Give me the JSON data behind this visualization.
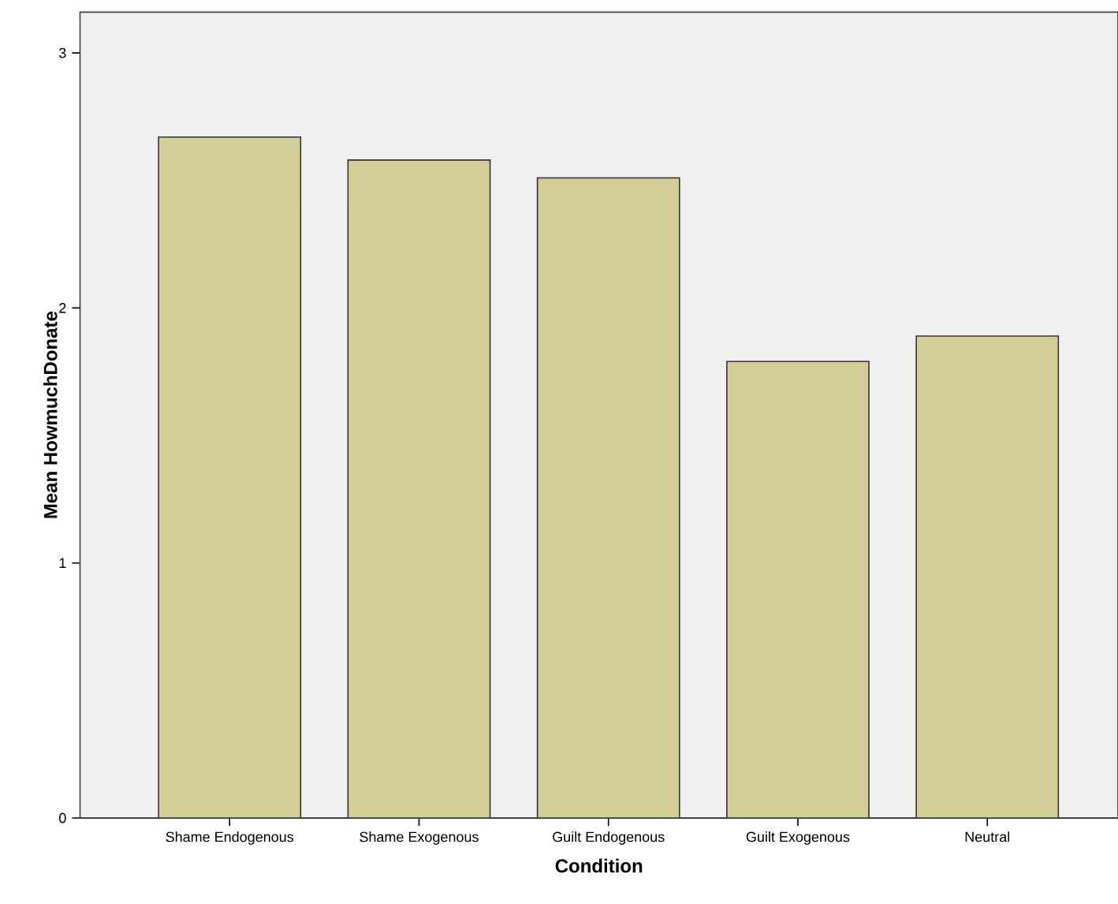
{
  "chart_data": {
    "type": "bar",
    "xlabel": "Condition",
    "ylabel": "Mean HowmuchDonate",
    "categories": [
      "Shame Endogenous",
      "Shame Exogenous",
      "Guilt Endogenous",
      "Guilt Exogenous",
      "Neutral"
    ],
    "values": [
      2.67,
      2.58,
      2.51,
      1.79,
      1.89
    ],
    "color": "#d3cd97",
    "ylim": [
      0,
      3.16
    ],
    "yticks": [
      0,
      1,
      2,
      3
    ],
    "grid": false
  }
}
